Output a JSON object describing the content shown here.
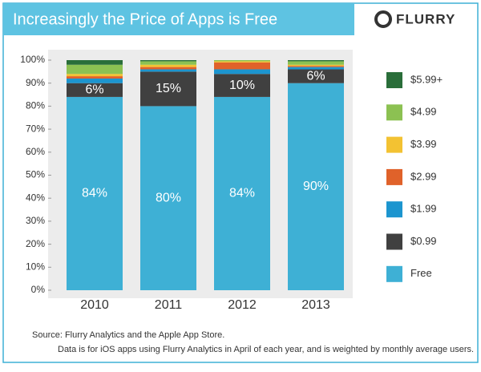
{
  "chart_data": {
    "type": "stacked-bar",
    "title": "Increasingly the Price of Apps is Free",
    "logo": "FLURRY",
    "source": "Source: Flurry Analytics and the Apple App Store.",
    "note": "Data is for iOS apps using Flurry Analytics in April of each year, and is weighted by monthly average users.",
    "categories": [
      "2010",
      "2011",
      "2012",
      "2013"
    ],
    "series": [
      {
        "name": "Free",
        "color": "#3eb0d5",
        "values": [
          84,
          80,
          84,
          90
        ],
        "value_labels": [
          "84%",
          "80%",
          "84%",
          "90%"
        ]
      },
      {
        "name": "$0.99",
        "color": "#404040",
        "values": [
          6,
          15,
          10,
          6
        ],
        "value_labels": [
          "6%",
          "15%",
          "10%",
          "6%"
        ]
      },
      {
        "name": "$1.99",
        "color": "#1c95cf",
        "values": [
          2,
          1,
          2,
          1
        ]
      },
      {
        "name": "$2.99",
        "color": "#e0622a",
        "values": [
          1,
          1,
          3,
          0.5
        ]
      },
      {
        "name": "$3.99",
        "color": "#f3c232",
        "values": [
          1,
          1,
          0.5,
          0.5
        ]
      },
      {
        "name": "$4.99",
        "color": "#8cc152",
        "values": [
          4,
          1.5,
          0.5,
          1.5
        ]
      },
      {
        "name": "$5.99+",
        "color": "#2a6e3a",
        "values": [
          2,
          0.5,
          0,
          0.5
        ]
      }
    ],
    "ylim": [
      0,
      100
    ],
    "yticks": [
      {
        "value": 0,
        "label": "0%"
      },
      {
        "value": 10,
        "label": "10%"
      },
      {
        "value": 20,
        "label": "20%"
      },
      {
        "value": 30,
        "label": "30%"
      },
      {
        "value": 40,
        "label": "40%"
      },
      {
        "value": 50,
        "label": "50%"
      },
      {
        "value": 60,
        "label": "60%"
      },
      {
        "value": 70,
        "label": "70%"
      },
      {
        "value": 80,
        "label": "80%"
      },
      {
        "value": 90,
        "label": "90%"
      },
      {
        "value": 100,
        "label": "100%"
      }
    ]
  }
}
